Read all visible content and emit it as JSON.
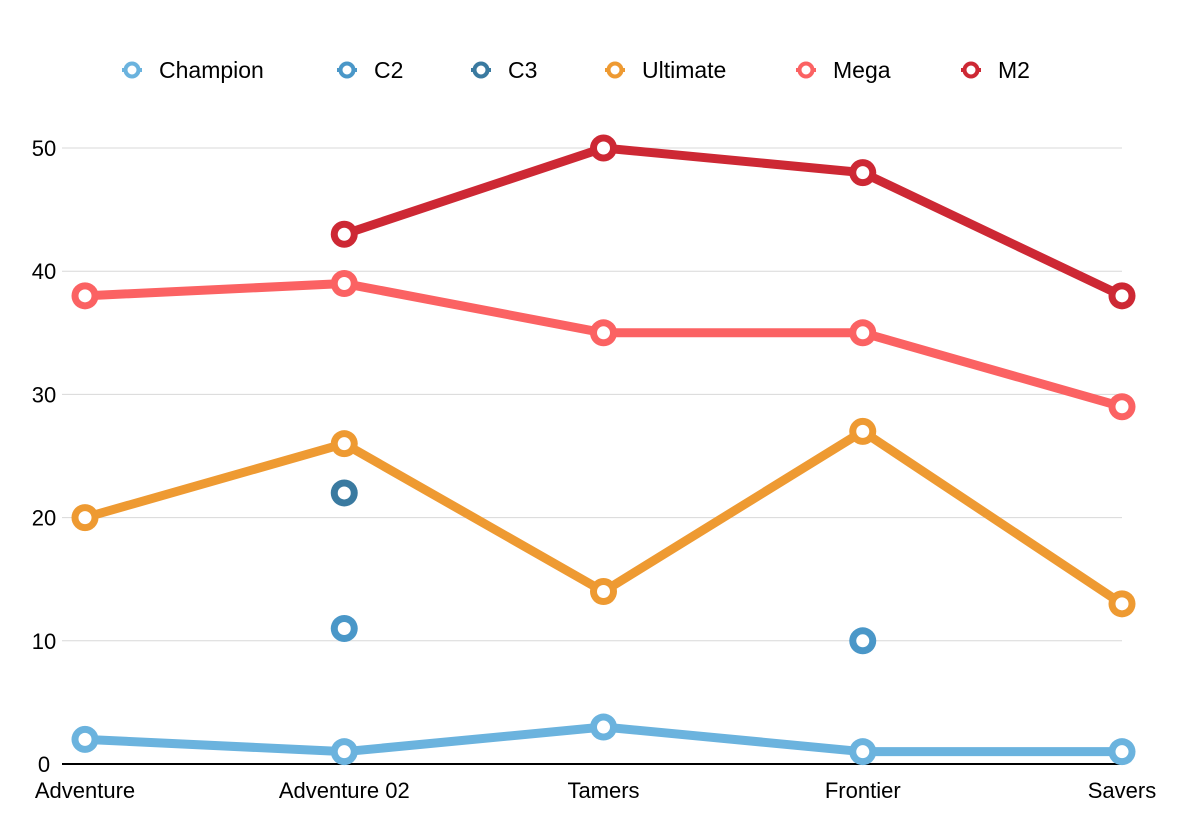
{
  "chart_data": {
    "type": "line",
    "categories": [
      "Adventure",
      "Adventure 02",
      "Tamers",
      "Frontier",
      "Savers"
    ],
    "yticks": [
      0,
      10,
      20,
      30,
      40,
      50
    ],
    "ylim": [
      0,
      50
    ],
    "grid": true,
    "legend_position": "top",
    "series": [
      {
        "name": "Champion",
        "color": "#6BB3DE",
        "values": [
          2,
          1,
          3,
          1,
          1
        ]
      },
      {
        "name": "C2",
        "color": "#4A97C8",
        "values": [
          null,
          11,
          null,
          10,
          null
        ]
      },
      {
        "name": "C3",
        "color": "#3A7AA0",
        "values": [
          null,
          22,
          null,
          null,
          null
        ]
      },
      {
        "name": "Ultimate",
        "color": "#EE9A32",
        "values": [
          20,
          26,
          14,
          27,
          13
        ]
      },
      {
        "name": "Mega",
        "color": "#FB6263",
        "values": [
          38,
          39,
          35,
          35,
          29
        ]
      },
      {
        "name": "M2",
        "color": "#CD2834",
        "values": [
          null,
          43,
          50,
          48,
          38
        ]
      }
    ]
  }
}
